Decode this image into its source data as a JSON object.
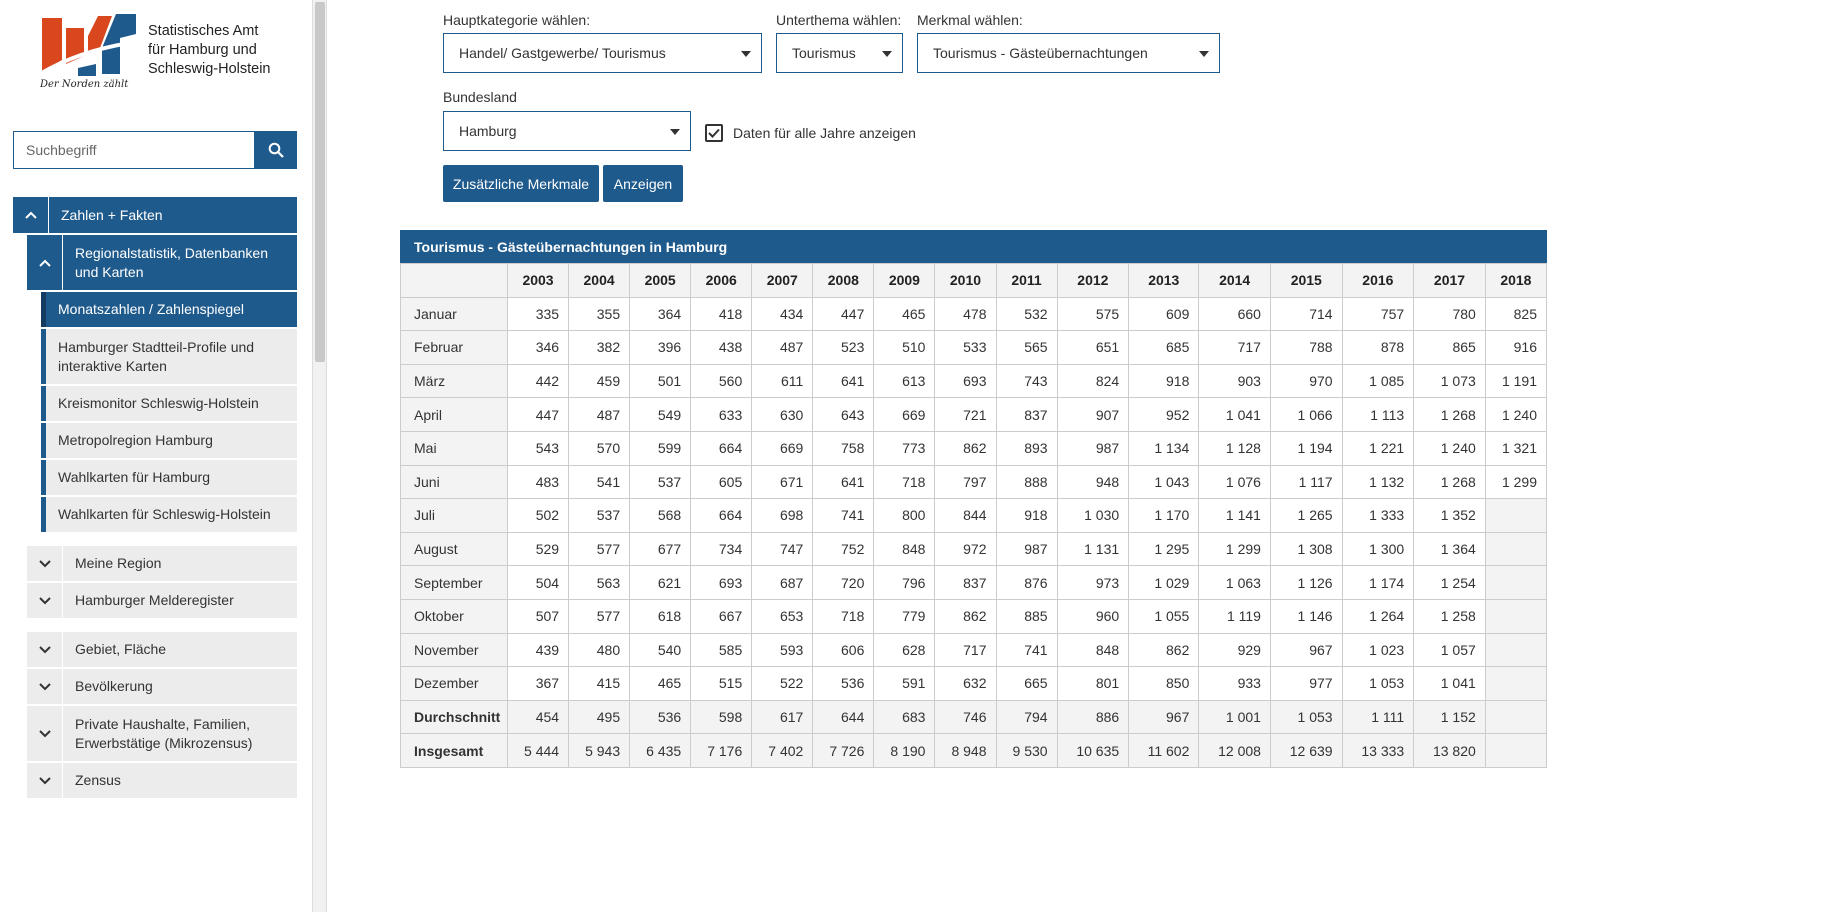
{
  "logo": {
    "line1": "Statistisches Amt",
    "line2": "für Hamburg und",
    "line3": "Schleswig-Holstein",
    "tagline": "Der Norden zählt",
    "colors": {
      "orange": "#d9471f",
      "blue": "#1f5a8c"
    }
  },
  "search": {
    "placeholder": "Suchbegriff",
    "icon": "search-icon"
  },
  "nav": {
    "zahlen": "Zahlen + Fakten",
    "regional": "Regionalstatistik, Datenbanken und Karten",
    "sub": [
      "Monatszahlen / Zahlenspiegel",
      "Hamburger Stadtteil-Profile und interaktive Karten",
      "Kreismonitor Schleswig-Holstein",
      "Metropolregion Hamburg",
      "Wahlkarten für Hamburg",
      "Wahlkarten für Schleswig-Holstein"
    ],
    "group1": [
      "Meine Region",
      "Hamburger Melderegister"
    ],
    "group2": [
      "Gebiet, Fläche",
      "Bevölkerung",
      "Private Haushalte, Familien, Erwerbstätige (Mikrozensus)",
      "Zensus"
    ]
  },
  "filters": {
    "hauptkategorie_label": "Hauptkategorie wählen:",
    "hauptkategorie_value": "Handel/ Gastgewerbe/ Tourismus",
    "unterthema_label": "Unterthema wählen:",
    "unterthema_value": "Tourismus",
    "merkmal_label": "Merkmal wählen:",
    "merkmal_value": "Tourismus - Gästeübernachtungen",
    "bundesland_label": "Bundesland",
    "bundesland_value": "Hamburg",
    "alle_jahre_label": "Daten für alle Jahre anzeigen",
    "alle_jahre_checked": true
  },
  "buttons": {
    "zusaetzlich": "Zusätzliche Merkmale",
    "anzeigen": "Anzeigen"
  },
  "table": {
    "title": "Tourismus - Gästeübernachtungen in Hamburg",
    "years": [
      "2003",
      "2004",
      "2005",
      "2006",
      "2007",
      "2008",
      "2009",
      "2010",
      "2011",
      "2012",
      "2013",
      "2014",
      "2015",
      "2016",
      "2017",
      "2018"
    ],
    "rows": [
      {
        "label": "Januar",
        "values": [
          "335",
          "355",
          "364",
          "418",
          "434",
          "447",
          "465",
          "478",
          "532",
          "575",
          "609",
          "660",
          "714",
          "757",
          "780",
          "825"
        ]
      },
      {
        "label": "Februar",
        "values": [
          "346",
          "382",
          "396",
          "438",
          "487",
          "523",
          "510",
          "533",
          "565",
          "651",
          "685",
          "717",
          "788",
          "878",
          "865",
          "916"
        ]
      },
      {
        "label": "März",
        "values": [
          "442",
          "459",
          "501",
          "560",
          "611",
          "641",
          "613",
          "693",
          "743",
          "824",
          "918",
          "903",
          "970",
          "1 085",
          "1 073",
          "1 191"
        ]
      },
      {
        "label": "April",
        "values": [
          "447",
          "487",
          "549",
          "633",
          "630",
          "643",
          "669",
          "721",
          "837",
          "907",
          "952",
          "1 041",
          "1 066",
          "1 113",
          "1 268",
          "1 240"
        ]
      },
      {
        "label": "Mai",
        "values": [
          "543",
          "570",
          "599",
          "664",
          "669",
          "758",
          "773",
          "862",
          "893",
          "987",
          "1 134",
          "1 128",
          "1 194",
          "1 221",
          "1 240",
          "1 321"
        ]
      },
      {
        "label": "Juni",
        "values": [
          "483",
          "541",
          "537",
          "605",
          "671",
          "641",
          "718",
          "797",
          "888",
          "948",
          "1 043",
          "1 076",
          "1 117",
          "1 132",
          "1 268",
          "1 299"
        ]
      },
      {
        "label": "Juli",
        "values": [
          "502",
          "537",
          "568",
          "664",
          "698",
          "741",
          "800",
          "844",
          "918",
          "1 030",
          "1 170",
          "1 141",
          "1 265",
          "1 333",
          "1 352",
          ""
        ]
      },
      {
        "label": "August",
        "values": [
          "529",
          "577",
          "677",
          "734",
          "747",
          "752",
          "848",
          "972",
          "987",
          "1 131",
          "1 295",
          "1 299",
          "1 308",
          "1 300",
          "1 364",
          ""
        ]
      },
      {
        "label": "September",
        "values": [
          "504",
          "563",
          "621",
          "693",
          "687",
          "720",
          "796",
          "837",
          "876",
          "973",
          "1 029",
          "1 063",
          "1 126",
          "1 174",
          "1 254",
          ""
        ]
      },
      {
        "label": "Oktober",
        "values": [
          "507",
          "577",
          "618",
          "667",
          "653",
          "718",
          "779",
          "862",
          "885",
          "960",
          "1 055",
          "1 119",
          "1 146",
          "1 264",
          "1 258",
          ""
        ]
      },
      {
        "label": "November",
        "values": [
          "439",
          "480",
          "540",
          "585",
          "593",
          "606",
          "628",
          "717",
          "741",
          "848",
          "862",
          "929",
          "967",
          "1 023",
          "1 057",
          ""
        ]
      },
      {
        "label": "Dezember",
        "values": [
          "367",
          "415",
          "465",
          "515",
          "522",
          "536",
          "591",
          "632",
          "665",
          "801",
          "850",
          "933",
          "977",
          "1 053",
          "1 041",
          ""
        ]
      }
    ],
    "summary": [
      {
        "label": "Durchschnitt",
        "values": [
          "454",
          "495",
          "536",
          "598",
          "617",
          "644",
          "683",
          "746",
          "794",
          "886",
          "967",
          "1 001",
          "1 053",
          "1 111",
          "1 152",
          ""
        ]
      },
      {
        "label": "Insgesamt",
        "values": [
          "5 444",
          "5 943",
          "6 435",
          "7 176",
          "7 402",
          "7 726",
          "8 190",
          "8 948",
          "9 530",
          "10 635",
          "11 602",
          "12 008",
          "12 639",
          "13 333",
          "13 820",
          ""
        ]
      }
    ]
  }
}
